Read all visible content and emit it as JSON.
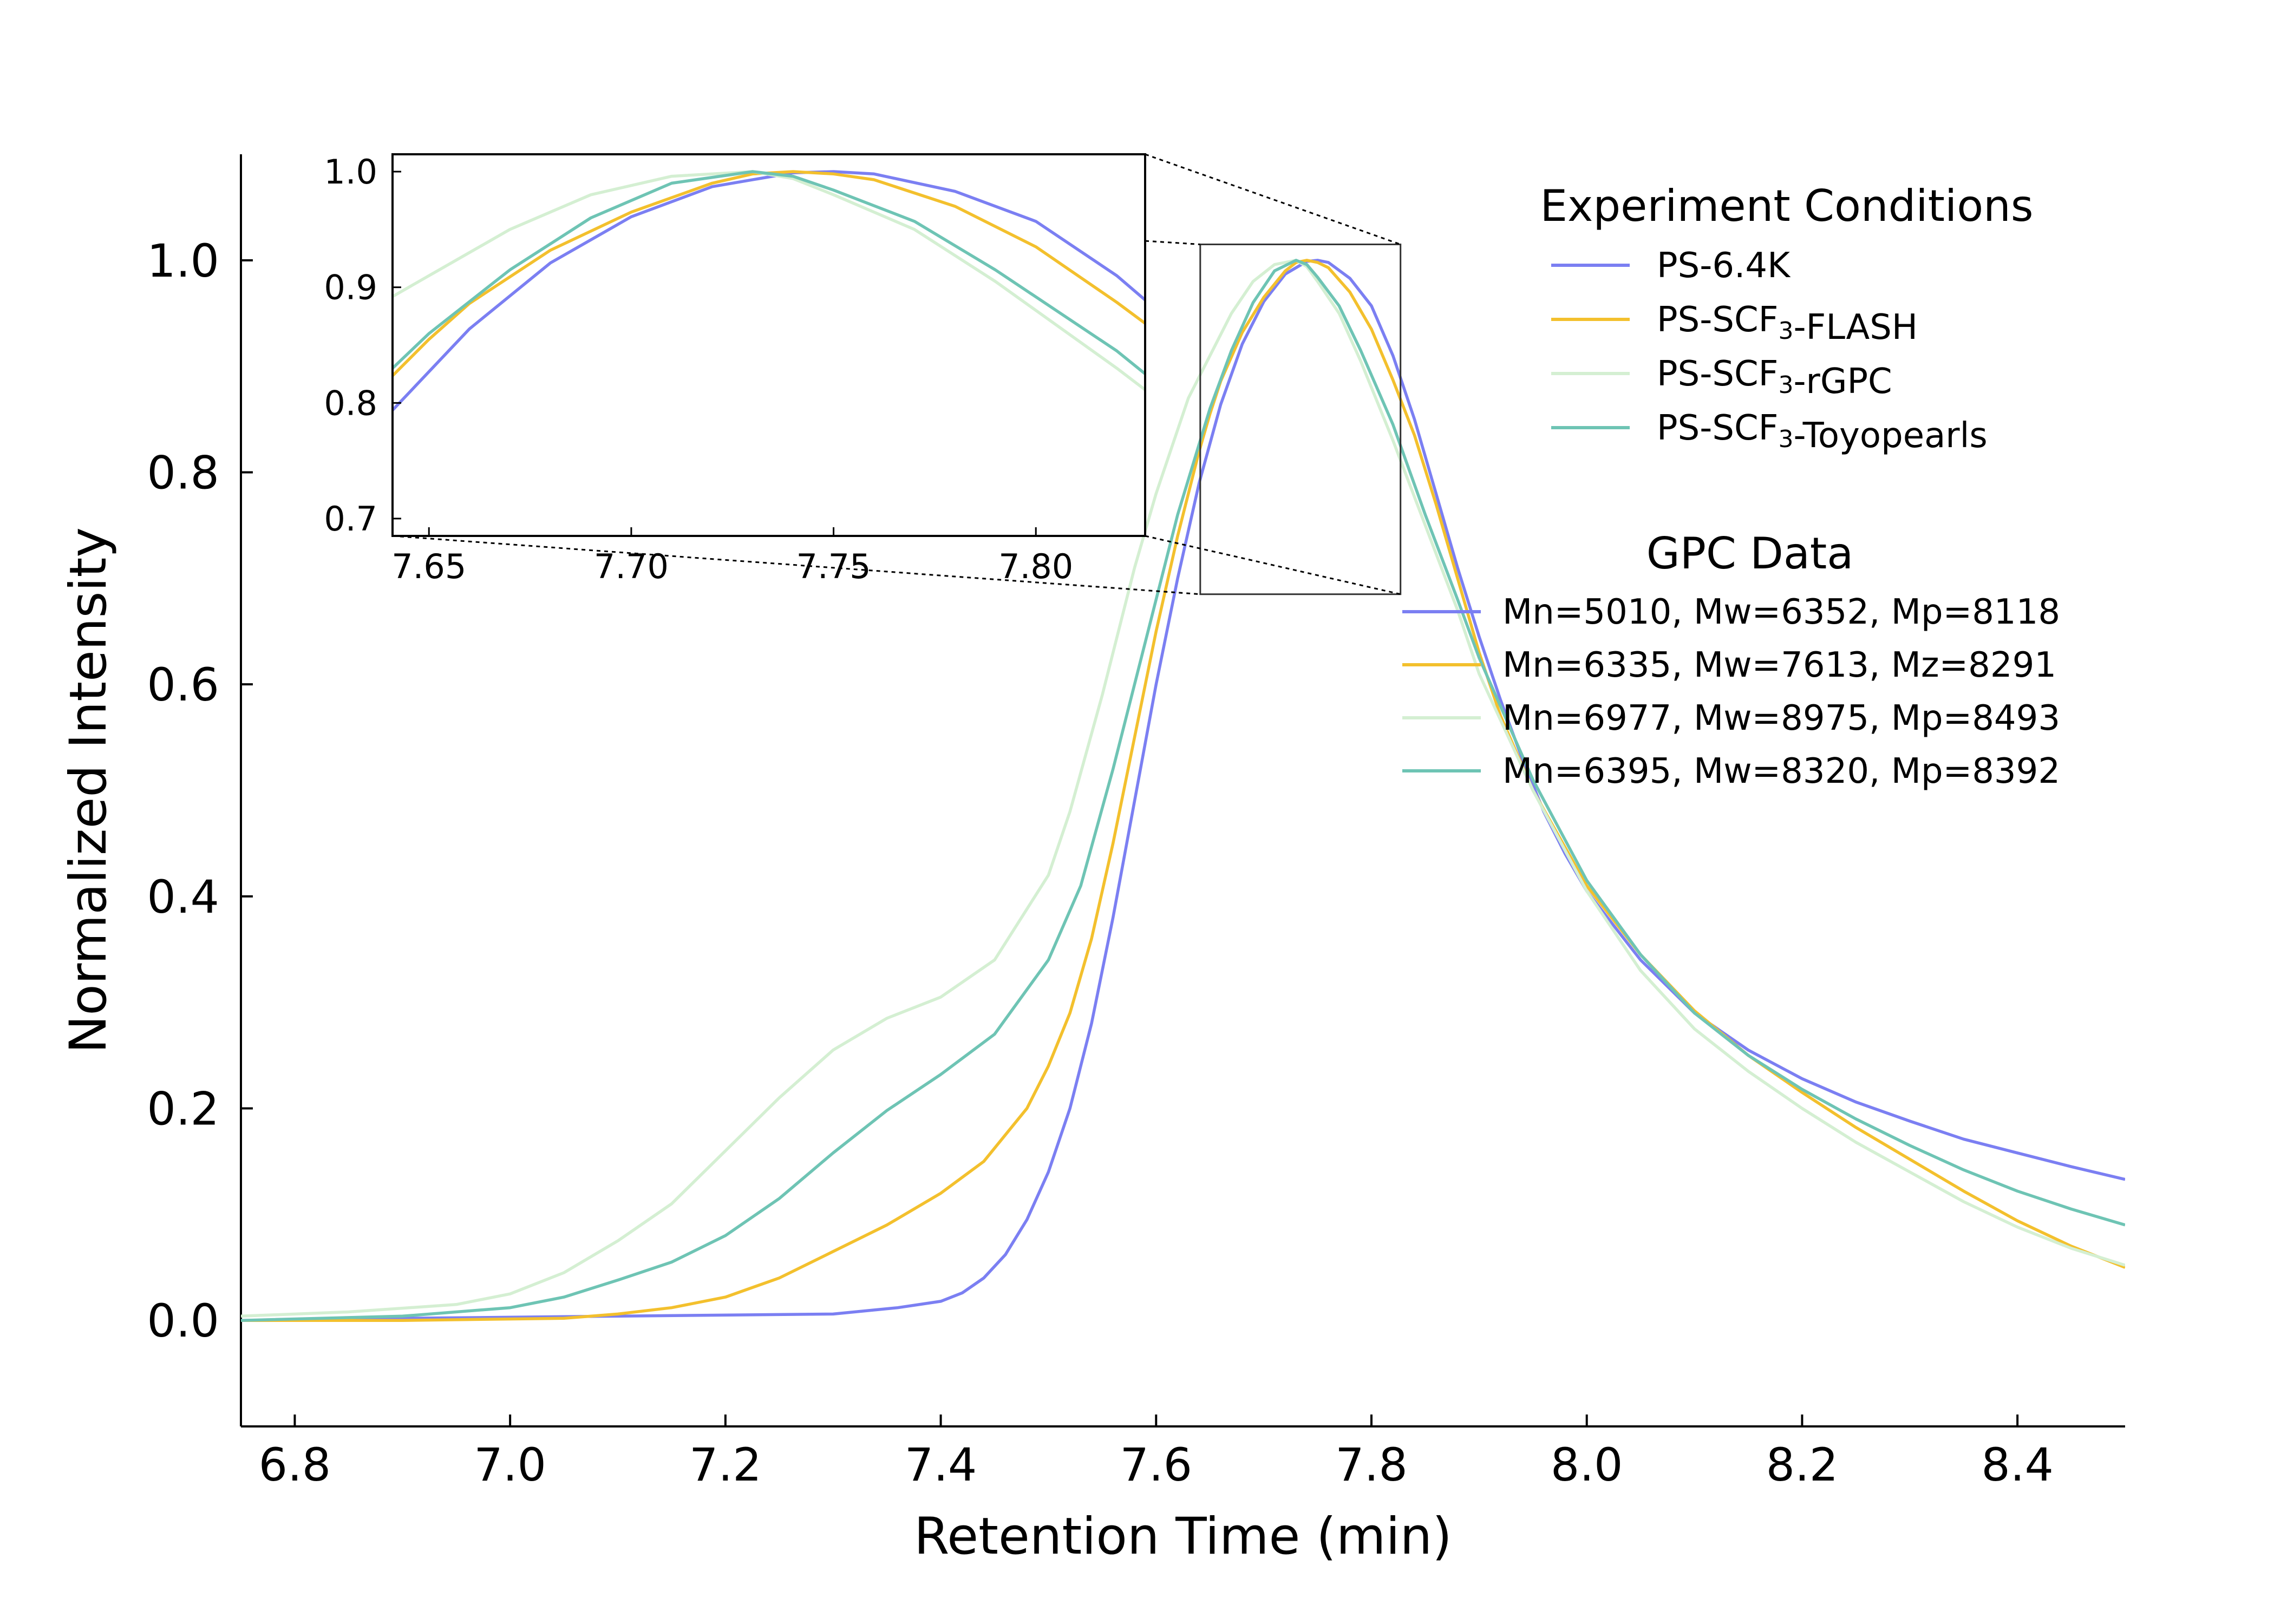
{
  "chart_data": {
    "type": "line",
    "xlabel": "Retention Time (min)",
    "ylabel": "Normalized Intensity",
    "xlim": [
      6.75,
      8.5
    ],
    "ylim": [
      -0.1,
      1.1
    ],
    "xticks": [
      6.8,
      7.0,
      7.2,
      7.4,
      7.6,
      7.8,
      8.0,
      8.2,
      8.4
    ],
    "xtick_labels": [
      "6.8",
      "7.0",
      "7.2",
      "7.4",
      "7.6",
      "7.8",
      "8.0",
      "8.2",
      "8.4"
    ],
    "yticks": [
      0.0,
      0.2,
      0.4,
      0.6,
      0.8,
      1.0
    ],
    "ytick_labels": [
      "0.0",
      "0.2",
      "0.4",
      "0.6",
      "0.8",
      "1.0"
    ],
    "grid": false,
    "legend_title": "Experiment Conditions",
    "legend_position": "top-right",
    "gpc_title": "GPC Data",
    "series": [
      {
        "name": "PS-6.4K",
        "color": "#7b7ff2",
        "gpc": "Mn=5010, Mw=6352, Mp=8118",
        "x": [
          6.75,
          6.9,
          7.1,
          7.3,
          7.36,
          7.4,
          7.42,
          7.44,
          7.46,
          7.48,
          7.5,
          7.52,
          7.54,
          7.56,
          7.58,
          7.6,
          7.62,
          7.64,
          7.66,
          7.68,
          7.7,
          7.72,
          7.74,
          7.75,
          7.76,
          7.78,
          7.8,
          7.82,
          7.84,
          7.86,
          7.88,
          7.9,
          7.92,
          7.94,
          7.96,
          7.98,
          8.0,
          8.05,
          8.1,
          8.15,
          8.2,
          8.25,
          8.3,
          8.35,
          8.4,
          8.45,
          8.5
        ],
        "y": [
          0.0,
          0.002,
          0.004,
          0.006,
          0.012,
          0.018,
          0.026,
          0.04,
          0.062,
          0.095,
          0.14,
          0.2,
          0.28,
          0.38,
          0.49,
          0.6,
          0.7,
          0.79,
          0.864,
          0.921,
          0.961,
          0.987,
          0.999,
          1.0,
          0.998,
          0.983,
          0.957,
          0.91,
          0.85,
          0.78,
          0.71,
          0.645,
          0.585,
          0.53,
          0.48,
          0.44,
          0.405,
          0.34,
          0.29,
          0.255,
          0.228,
          0.206,
          0.188,
          0.171,
          0.158,
          0.145,
          0.133
        ]
      },
      {
        "name": "PS-SCF3-FLASH",
        "color": "#f3c02d",
        "gpc": "Mn=6335, Mw=7613, Mz=8291",
        "x": [
          6.75,
          6.9,
          7.05,
          7.1,
          7.15,
          7.2,
          7.25,
          7.3,
          7.35,
          7.4,
          7.44,
          7.48,
          7.5,
          7.52,
          7.54,
          7.56,
          7.58,
          7.6,
          7.62,
          7.64,
          7.65,
          7.66,
          7.68,
          7.7,
          7.72,
          7.73,
          7.74,
          7.75,
          7.76,
          7.78,
          7.8,
          7.82,
          7.84,
          7.86,
          7.88,
          7.9,
          7.92,
          7.95,
          8.0,
          8.05,
          8.1,
          8.15,
          8.2,
          8.25,
          8.3,
          8.35,
          8.4,
          8.45,
          8.5
        ],
        "y": [
          0.0,
          0.0,
          0.002,
          0.006,
          0.012,
          0.022,
          0.04,
          0.065,
          0.09,
          0.12,
          0.15,
          0.2,
          0.24,
          0.29,
          0.36,
          0.45,
          0.55,
          0.65,
          0.74,
          0.82,
          0.855,
          0.886,
          0.932,
          0.965,
          0.99,
          0.998,
          1.0,
          0.998,
          0.993,
          0.97,
          0.935,
          0.887,
          0.835,
          0.77,
          0.7,
          0.63,
          0.57,
          0.5,
          0.41,
          0.345,
          0.292,
          0.25,
          0.215,
          0.182,
          0.152,
          0.122,
          0.094,
          0.07,
          0.05
        ]
      },
      {
        "name": "PS-SCF3-rGPC",
        "color": "#d4efd2",
        "gpc": "Mn=6977, Mw=8975, Mp=8493",
        "x": [
          6.75,
          6.85,
          6.95,
          7.0,
          7.05,
          7.1,
          7.15,
          7.2,
          7.25,
          7.3,
          7.35,
          7.4,
          7.45,
          7.5,
          7.52,
          7.55,
          7.58,
          7.6,
          7.63,
          7.65,
          7.67,
          7.69,
          7.71,
          7.73,
          7.74,
          7.75,
          7.77,
          7.79,
          7.82,
          7.85,
          7.88,
          7.9,
          7.95,
          8.0,
          8.05,
          8.1,
          8.15,
          8.2,
          8.25,
          8.3,
          8.35,
          8.4,
          8.45,
          8.5
        ],
        "y": [
          0.004,
          0.008,
          0.015,
          0.025,
          0.045,
          0.075,
          0.11,
          0.16,
          0.21,
          0.255,
          0.285,
          0.305,
          0.34,
          0.42,
          0.48,
          0.59,
          0.71,
          0.78,
          0.87,
          0.91,
          0.95,
          0.98,
          0.996,
          1.0,
          0.994,
          0.98,
          0.95,
          0.905,
          0.83,
          0.75,
          0.67,
          0.61,
          0.5,
          0.405,
          0.33,
          0.275,
          0.235,
          0.2,
          0.168,
          0.14,
          0.112,
          0.088,
          0.068,
          0.052
        ]
      },
      {
        "name": "PS-SCF3-Toyopearls",
        "color": "#6ec4b4",
        "gpc": "Mn=6395, Mw=8320, Mp=8392",
        "x": [
          6.75,
          6.9,
          7.0,
          7.05,
          7.1,
          7.15,
          7.2,
          7.25,
          7.3,
          7.35,
          7.4,
          7.45,
          7.5,
          7.53,
          7.56,
          7.59,
          7.62,
          7.65,
          7.67,
          7.69,
          7.71,
          7.73,
          7.74,
          7.75,
          7.77,
          7.79,
          7.82,
          7.85,
          7.88,
          7.9,
          7.95,
          8.0,
          8.05,
          8.1,
          8.15,
          8.2,
          8.25,
          8.3,
          8.35,
          8.4,
          8.45,
          8.5
        ],
        "y": [
          0.0,
          0.004,
          0.012,
          0.022,
          0.038,
          0.055,
          0.08,
          0.115,
          0.158,
          0.198,
          0.232,
          0.27,
          0.34,
          0.41,
          0.52,
          0.64,
          0.76,
          0.86,
          0.915,
          0.96,
          0.99,
          1.0,
          0.996,
          0.984,
          0.957,
          0.915,
          0.845,
          0.76,
          0.68,
          0.625,
          0.51,
          0.415,
          0.345,
          0.29,
          0.25,
          0.218,
          0.19,
          0.165,
          0.142,
          0.122,
          0.105,
          0.09
        ]
      }
    ],
    "inset": {
      "xlim": [
        7.641,
        7.827
      ],
      "ylim": [
        0.685,
        1.015
      ],
      "xticks": [
        7.65,
        7.7,
        7.75,
        7.8
      ],
      "xtick_labels": [
        "7.65",
        "7.70",
        "7.75",
        "7.80"
      ],
      "yticks": [
        0.7,
        0.8,
        0.9,
        1.0
      ],
      "ytick_labels": [
        "0.7",
        "0.8",
        "0.9",
        "1.0"
      ],
      "zoom_region_x": [
        7.641,
        7.827
      ],
      "zoom_region_y": [
        0.685,
        1.015
      ]
    }
  }
}
